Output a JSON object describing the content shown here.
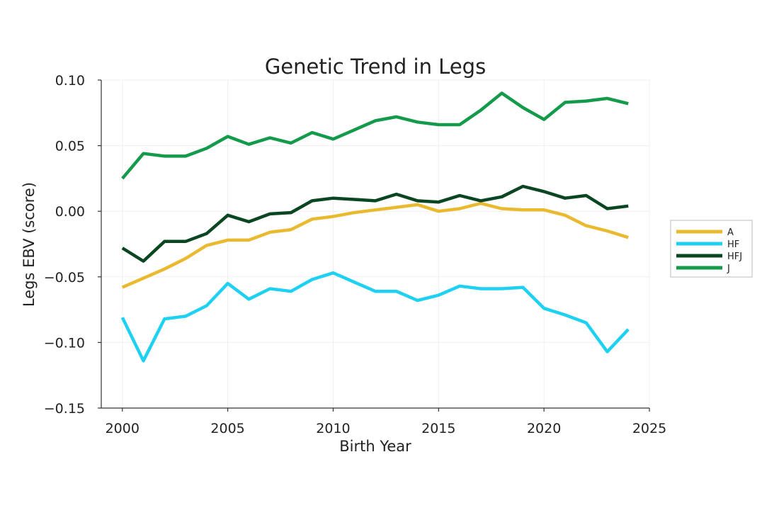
{
  "chart_data": {
    "type": "line",
    "title": "Genetic Trend in Legs",
    "xlabel": "Birth Year",
    "ylabel": "Legs EBV (score)",
    "xlim": [
      1999,
      2025
    ],
    "ylim": [
      -0.15,
      0.1
    ],
    "xticks": [
      2000,
      2005,
      2010,
      2015,
      2020,
      2025
    ],
    "xtick_labels": [
      "2000",
      "2005",
      "2010",
      "2015",
      "2020",
      "2025"
    ],
    "yticks": [
      -0.15,
      -0.1,
      -0.05,
      0.0,
      0.05,
      0.1
    ],
    "ytick_labels": [
      "−0.15",
      "−0.10",
      "−0.05",
      "0.00",
      "0.05",
      "0.10"
    ],
    "grid": true,
    "legend_position": "right",
    "x": [
      2000,
      2001,
      2002,
      2003,
      2004,
      2005,
      2006,
      2007,
      2008,
      2009,
      2010,
      2011,
      2012,
      2013,
      2014,
      2015,
      2016,
      2017,
      2018,
      2019,
      2020,
      2021,
      2022,
      2023,
      2024
    ],
    "series": [
      {
        "name": "A",
        "color": "#E9B930",
        "values": [
          -0.058,
          -0.051,
          -0.044,
          -0.036,
          -0.026,
          -0.022,
          -0.022,
          -0.016,
          -0.014,
          -0.006,
          -0.004,
          -0.001,
          0.001,
          0.003,
          0.005,
          0.0,
          0.002,
          0.006,
          0.002,
          0.001,
          0.001,
          -0.003,
          -0.011,
          -0.015,
          -0.02
        ]
      },
      {
        "name": "HF",
        "color": "#1ED0F2",
        "values": [
          -0.081,
          -0.114,
          -0.082,
          -0.08,
          -0.072,
          -0.055,
          -0.067,
          -0.059,
          -0.061,
          -0.052,
          -0.047,
          -0.054,
          -0.061,
          -0.061,
          -0.068,
          -0.064,
          -0.057,
          -0.059,
          -0.059,
          -0.058,
          -0.074,
          -0.079,
          -0.085,
          -0.107,
          -0.09
        ]
      },
      {
        "name": "HFJ",
        "color": "#0A4622",
        "values": [
          -0.028,
          -0.038,
          -0.023,
          -0.023,
          -0.017,
          -0.003,
          -0.008,
          -0.002,
          -0.001,
          0.008,
          0.01,
          0.009,
          0.008,
          0.013,
          0.008,
          0.007,
          0.012,
          0.008,
          0.011,
          0.019,
          0.015,
          0.01,
          0.012,
          0.002,
          0.004
        ]
      },
      {
        "name": "J",
        "color": "#139A4A",
        "values": [
          0.025,
          0.044,
          0.042,
          0.042,
          0.048,
          0.057,
          0.051,
          0.056,
          0.052,
          0.06,
          0.055,
          0.062,
          0.069,
          0.072,
          0.068,
          0.066,
          0.066,
          0.077,
          0.09,
          0.079,
          0.07,
          0.083,
          0.084,
          0.086,
          0.082
        ]
      }
    ]
  }
}
